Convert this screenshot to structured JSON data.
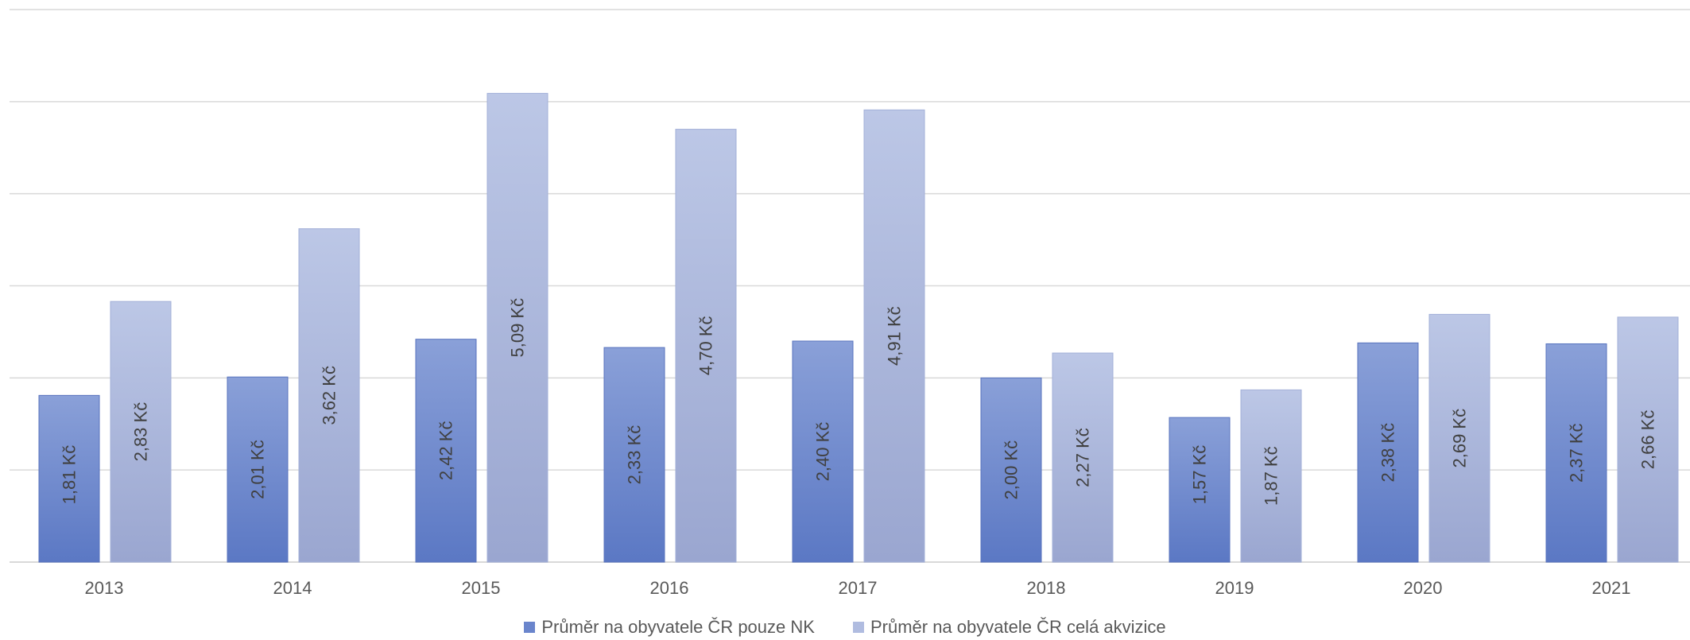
{
  "chart_data": {
    "type": "bar",
    "categories": [
      "2013",
      "2014",
      "2015",
      "2016",
      "2017",
      "2018",
      "2019",
      "2020",
      "2021"
    ],
    "series": [
      {
        "name": "Průměr na obyvatele ČR pouze NK",
        "values": [
          1.81,
          2.01,
          2.42,
          2.33,
          2.4,
          2.0,
          1.57,
          2.38,
          2.37
        ],
        "labels": [
          "1,81 Kč",
          "2,01 Kč",
          "2,42 Kč",
          "2,33 Kč",
          "2,40 Kč",
          "2,00 Kč",
          "1,57 Kč",
          "2,38 Kč",
          "2,37 Kč"
        ],
        "color": "#6a85cc",
        "color_top": "#8aa0d8",
        "color_bottom": "#5b78c4"
      },
      {
        "name": "Průměr na obyvatele ČR celá akvizice",
        "values": [
          2.83,
          3.62,
          5.09,
          4.7,
          4.91,
          2.27,
          1.87,
          2.69,
          2.66
        ],
        "labels": [
          "2,83 Kč",
          "3,62 Kč",
          "5,09 Kč",
          "4,70 Kč",
          "4,91 Kč",
          "2,27 Kč",
          "1,87 Kč",
          "2,69 Kč",
          "2,66 Kč"
        ],
        "color": "#b0bce0",
        "color_top": "#bcc7e6",
        "color_bottom": "#9aa6d0"
      }
    ],
    "ylim": [
      0,
      6
    ],
    "grid": true,
    "legend_position": "bottom",
    "label_color": "#404040",
    "tick_color": "#595959",
    "grid_color": "#d9d9d9"
  }
}
